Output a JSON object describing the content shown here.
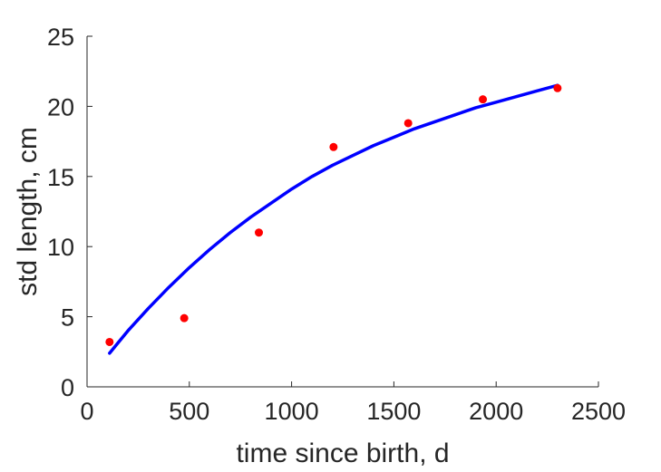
{
  "chart_data": {
    "type": "scatter",
    "title": "",
    "xlabel": "time since birth, d",
    "ylabel": "std length, cm",
    "xlim": [
      0,
      2500
    ],
    "ylim": [
      0,
      25
    ],
    "xticks": [
      0,
      500,
      1000,
      1500,
      2000,
      2500
    ],
    "yticks": [
      0,
      5,
      10,
      15,
      20,
      25
    ],
    "xtick_labels": [
      "0",
      "500",
      "1000",
      "1500",
      "2000",
      "2500"
    ],
    "ytick_labels": [
      "0",
      "5",
      "10",
      "15",
      "20",
      "25"
    ],
    "grid": false,
    "legend": "none",
    "series": [
      {
        "kind": "scatter",
        "color": "#ff0000",
        "points": [
          {
            "x": 110,
            "y": 3.2
          },
          {
            "x": 475,
            "y": 4.9
          },
          {
            "x": 840,
            "y": 11.0
          },
          {
            "x": 1205,
            "y": 17.1
          },
          {
            "x": 1570,
            "y": 18.8
          },
          {
            "x": 1935,
            "y": 20.5
          },
          {
            "x": 2300,
            "y": 21.3
          }
        ]
      },
      {
        "kind": "line",
        "color": "#0000ff",
        "points": [
          {
            "x": 110,
            "y": 2.4
          },
          {
            "x": 200,
            "y": 4.0
          },
          {
            "x": 300,
            "y": 5.6
          },
          {
            "x": 400,
            "y": 7.1
          },
          {
            "x": 500,
            "y": 8.5
          },
          {
            "x": 600,
            "y": 9.8
          },
          {
            "x": 700,
            "y": 11.0
          },
          {
            "x": 800,
            "y": 12.1
          },
          {
            "x": 900,
            "y": 13.1
          },
          {
            "x": 1000,
            "y": 14.1
          },
          {
            "x": 1100,
            "y": 15.0
          },
          {
            "x": 1200,
            "y": 15.8
          },
          {
            "x": 1300,
            "y": 16.5
          },
          {
            "x": 1400,
            "y": 17.2
          },
          {
            "x": 1500,
            "y": 17.8
          },
          {
            "x": 1600,
            "y": 18.4
          },
          {
            "x": 1700,
            "y": 18.9
          },
          {
            "x": 1800,
            "y": 19.4
          },
          {
            "x": 1900,
            "y": 19.9
          },
          {
            "x": 2000,
            "y": 20.3
          },
          {
            "x": 2100,
            "y": 20.7
          },
          {
            "x": 2200,
            "y": 21.1
          },
          {
            "x": 2300,
            "y": 21.5
          }
        ]
      }
    ]
  },
  "colors": {
    "axis": "#262626",
    "background": "#ffffff"
  }
}
